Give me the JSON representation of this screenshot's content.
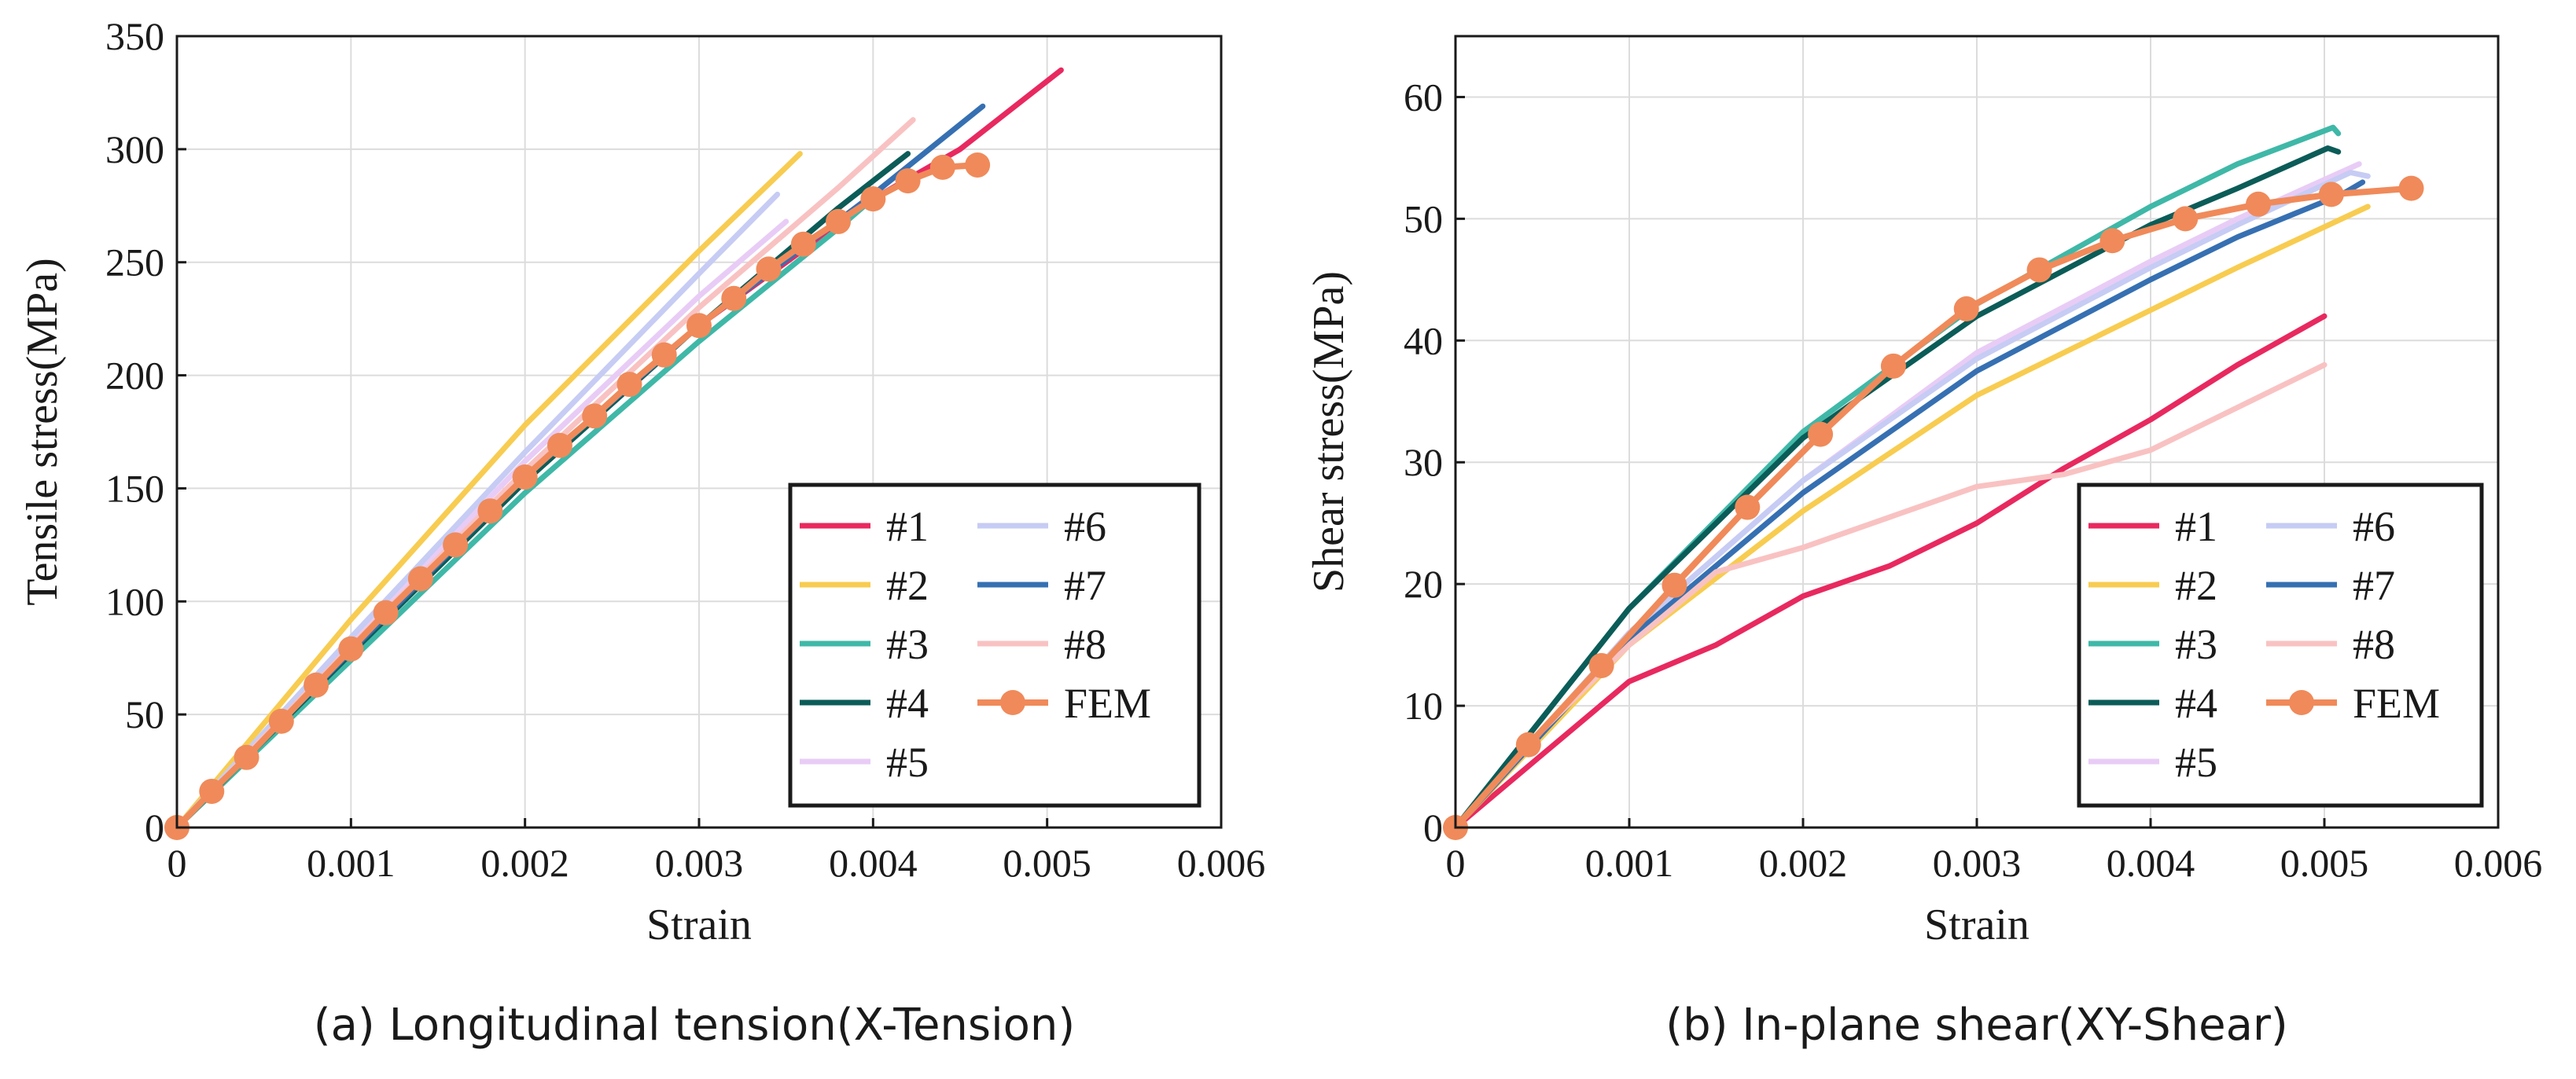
{
  "chart_data": [
    {
      "type": "line",
      "caption": "(a) Longitudinal tension(X-Tension)",
      "xlabel": "Strain",
      "ylabel": "Tensile stress(MPa)",
      "xlim": [
        0,
        0.006
      ],
      "ylim": [
        0,
        350
      ],
      "xticks": [
        0,
        0.001,
        0.002,
        0.003,
        0.004,
        0.005,
        0.006
      ],
      "xtick_labels": [
        "0",
        "0.001",
        "0.002",
        "0.003",
        "0.004",
        "0.005",
        "0.006"
      ],
      "yticks": [
        0,
        50,
        100,
        150,
        200,
        250,
        300,
        350
      ],
      "ytick_labels": [
        "0",
        "50",
        "100",
        "150",
        "200",
        "250",
        "300",
        "350"
      ],
      "grid": true,
      "legend_position": "bottom-right",
      "series": [
        {
          "name": "#1",
          "color": "#e8295f",
          "x": [
            0,
            0.001,
            0.002,
            0.003,
            0.004,
            0.0045,
            0.00508
          ],
          "y": [
            0,
            78,
            155,
            222,
            278,
            300,
            335
          ]
        },
        {
          "name": "#2",
          "color": "#f8cc50",
          "x": [
            0,
            0.001,
            0.002,
            0.003,
            0.0035,
            0.00358
          ],
          "y": [
            0,
            92,
            178,
            255,
            292,
            298
          ]
        },
        {
          "name": "#3",
          "color": "#3fb8a8",
          "x": [
            0,
            0.001,
            0.002,
            0.003,
            0.0038,
            0.00395
          ],
          "y": [
            0,
            74,
            148,
            215,
            265,
            275
          ]
        },
        {
          "name": "#4",
          "color": "#0b5c58",
          "x": [
            0,
            0.001,
            0.002,
            0.003,
            0.0038,
            0.0042
          ],
          "y": [
            0,
            77,
            153,
            222,
            274,
            298
          ]
        },
        {
          "name": "#5",
          "color": "#e8ccf6",
          "x": [
            0,
            0.001,
            0.002,
            0.003,
            0.0035
          ],
          "y": [
            0,
            82,
            162,
            235,
            268
          ]
        },
        {
          "name": "#6",
          "color": "#c6ccf4",
          "x": [
            0,
            0.001,
            0.002,
            0.003,
            0.00345
          ],
          "y": [
            0,
            84,
            166,
            245,
            280
          ]
        },
        {
          "name": "#7",
          "color": "#3670b2",
          "x": [
            0,
            0.001,
            0.002,
            0.003,
            0.004,
            0.00463
          ],
          "y": [
            0,
            78,
            155,
            222,
            280,
            319
          ]
        },
        {
          "name": "#8",
          "color": "#f9c2c2",
          "x": [
            0,
            0.001,
            0.002,
            0.003,
            0.0038,
            0.00423
          ],
          "y": [
            0,
            80,
            158,
            230,
            283,
            313
          ]
        },
        {
          "name": "FEM",
          "color": "#f08a5a",
          "marker": "circle",
          "x": [
            0,
            0.0002,
            0.0004,
            0.0006,
            0.0008,
            0.001,
            0.0012,
            0.0014,
            0.0016,
            0.0018,
            0.002,
            0.0022,
            0.0024,
            0.0026,
            0.0028,
            0.003,
            0.0032,
            0.0034,
            0.0036,
            0.0038,
            0.004,
            0.0042,
            0.0044,
            0.0046
          ],
          "y": [
            0,
            16,
            31,
            47,
            63,
            79,
            95,
            110,
            125,
            140,
            155,
            169,
            182,
            196,
            209,
            222,
            234,
            247,
            258,
            268,
            278,
            286,
            292,
            293
          ]
        }
      ]
    },
    {
      "type": "line",
      "caption": "(b) In-plane shear(XY-Shear)",
      "xlabel": "Strain",
      "ylabel": "Shear stress(MPa)",
      "xlim": [
        0,
        0.006
      ],
      "ylim": [
        0,
        65
      ],
      "xticks": [
        0,
        0.001,
        0.002,
        0.003,
        0.004,
        0.005,
        0.006
      ],
      "xtick_labels": [
        "0",
        "0.001",
        "0.002",
        "0.003",
        "0.004",
        "0.005",
        "0.006"
      ],
      "yticks": [
        0,
        10,
        20,
        30,
        40,
        50,
        60
      ],
      "ytick_labels": [
        "0",
        "10",
        "20",
        "30",
        "40",
        "50",
        "60"
      ],
      "grid": true,
      "legend_position": "bottom-right",
      "series": [
        {
          "name": "#1",
          "color": "#e8295f",
          "x": [
            0,
            0.0005,
            0.001,
            0.0015,
            0.002,
            0.0025,
            0.003,
            0.0035,
            0.004,
            0.0045,
            0.005
          ],
          "y": [
            0,
            6,
            12,
            15,
            19,
            21.5,
            25,
            29.5,
            33.5,
            38,
            42
          ]
        },
        {
          "name": "#2",
          "color": "#f8cc50",
          "x": [
            0,
            0.001,
            0.002,
            0.003,
            0.004,
            0.0045,
            0.00525
          ],
          "y": [
            0,
            15,
            26,
            35.5,
            42.5,
            46,
            51
          ]
        },
        {
          "name": "#3",
          "color": "#3fb8a8",
          "x": [
            0,
            0.001,
            0.002,
            0.003,
            0.004,
            0.0045,
            0.00505,
            0.00508
          ],
          "y": [
            0,
            18,
            32.5,
            43,
            51,
            54.5,
            57.5,
            57
          ]
        },
        {
          "name": "#4",
          "color": "#0b5c58",
          "x": [
            0,
            0.001,
            0.002,
            0.003,
            0.004,
            0.0045,
            0.00502,
            0.00508
          ],
          "y": [
            0,
            18,
            32,
            42,
            49.5,
            52.5,
            55.8,
            55.5
          ]
        },
        {
          "name": "#5",
          "color": "#e8ccf6",
          "x": [
            0,
            0.001,
            0.002,
            0.003,
            0.004,
            0.0045,
            0.0052
          ],
          "y": [
            0,
            16,
            28.5,
            39,
            46.5,
            50,
            54.5
          ]
        },
        {
          "name": "#6",
          "color": "#c6ccf4",
          "x": [
            0,
            0.001,
            0.002,
            0.003,
            0.004,
            0.0045,
            0.00515,
            0.00525
          ],
          "y": [
            0,
            16,
            28.5,
            38.5,
            46,
            49.5,
            53.8,
            53.5
          ]
        },
        {
          "name": "#7",
          "color": "#3670b2",
          "x": [
            0,
            0.001,
            0.002,
            0.003,
            0.004,
            0.0045,
            0.0051,
            0.00522
          ],
          "y": [
            0,
            15.5,
            27.5,
            37.5,
            45,
            48.5,
            52,
            53
          ]
        },
        {
          "name": "#8",
          "color": "#f9c2c2",
          "x": [
            0,
            0.0005,
            0.001,
            0.0015,
            0.002,
            0.0025,
            0.003,
            0.0035,
            0.004,
            0.0045,
            0.005
          ],
          "y": [
            0,
            8,
            15,
            21,
            23,
            25.5,
            28,
            29,
            31,
            34.5,
            38
          ]
        },
        {
          "name": "FEM",
          "color": "#f08a5a",
          "marker": "circle",
          "x": [
            0,
            0.00042,
            0.00084,
            0.00126,
            0.00168,
            0.0021,
            0.00252,
            0.00294,
            0.00336,
            0.00378,
            0.0042,
            0.00462,
            0.00504,
            0.0055
          ],
          "y": [
            0,
            6.8,
            13.3,
            19.9,
            26.3,
            32.3,
            37.9,
            42.6,
            45.8,
            48.2,
            50,
            51.2,
            52,
            52.5
          ]
        }
      ]
    }
  ]
}
